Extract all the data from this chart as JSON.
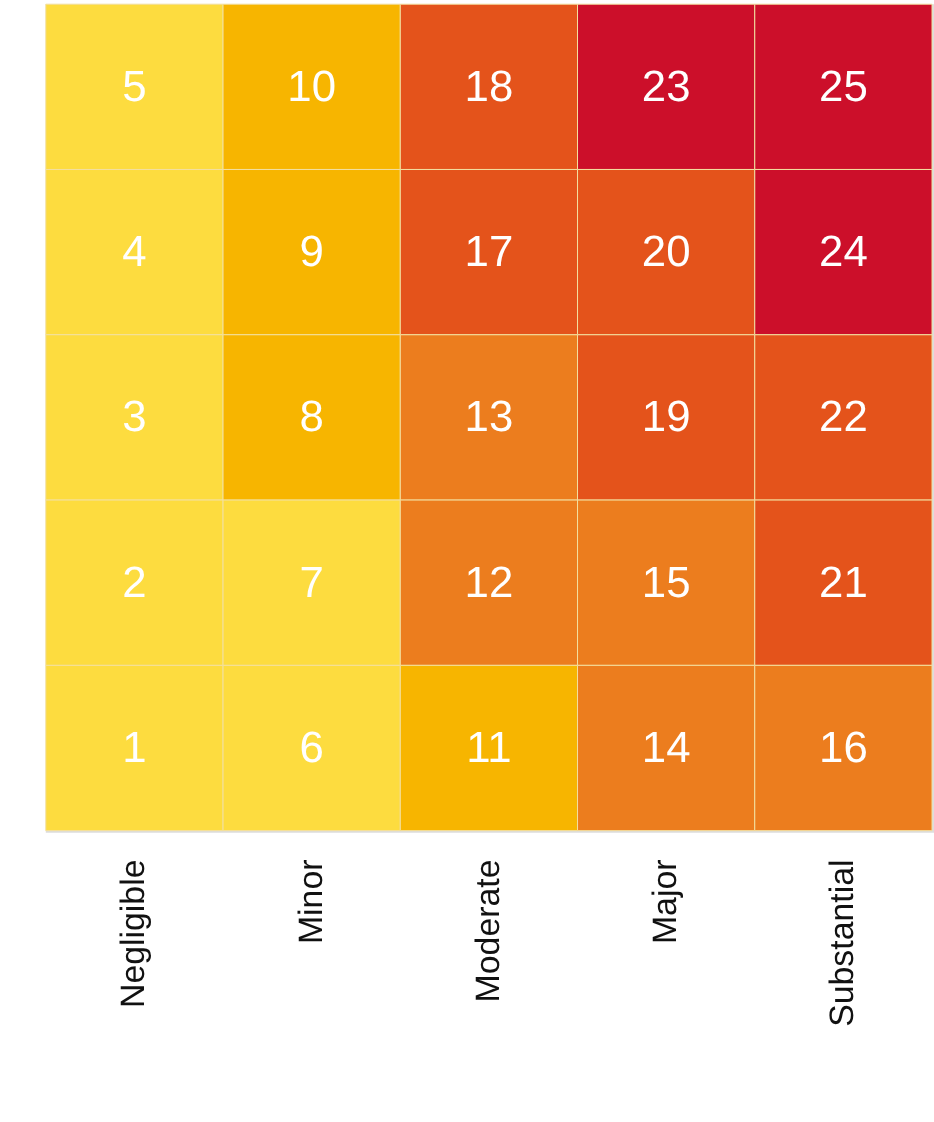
{
  "chart_data": {
    "type": "heatmap",
    "categories": [
      "Negligible",
      "Minor",
      "Moderate",
      "Major",
      "Substantial"
    ],
    "y_categories": [
      null,
      null,
      null,
      null,
      null
    ],
    "cells": [
      [
        5,
        10,
        18,
        23,
        25
      ],
      [
        4,
        9,
        17,
        20,
        24
      ],
      [
        3,
        8,
        13,
        19,
        22
      ],
      [
        2,
        7,
        12,
        15,
        21
      ],
      [
        1,
        6,
        11,
        14,
        16
      ]
    ],
    "colors": [
      [
        "#fddc3f",
        "#f7b500",
        "#e4531b",
        "#cc0f2a",
        "#cc0f2a"
      ],
      [
        "#fddc3f",
        "#f7b500",
        "#e4531b",
        "#e4531b",
        "#cc0f2a"
      ],
      [
        "#fddc3f",
        "#f7b500",
        "#ec7d1e",
        "#e4531b",
        "#e4531b"
      ],
      [
        "#fddc3f",
        "#fddc3f",
        "#ec7d1e",
        "#ec7d1e",
        "#e4531b"
      ],
      [
        "#fddc3f",
        "#fddc3f",
        "#f7b500",
        "#ec7d1e",
        "#ec7d1e"
      ]
    ],
    "data_labels": true,
    "tick_labels": "x"
  }
}
